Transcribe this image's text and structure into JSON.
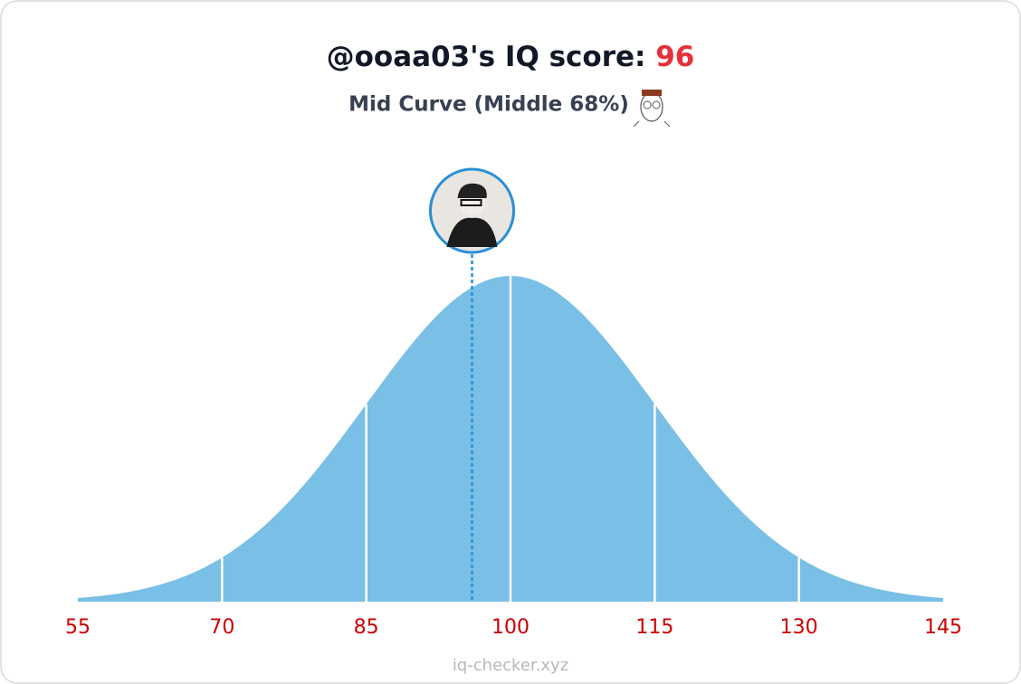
{
  "chart_data": {
    "type": "bell",
    "title": "@ooaa03's IQ score:",
    "score": 96,
    "subtitle": "Mid Curve (Middle 68%)",
    "xlim": [
      55,
      145
    ],
    "xticks": [
      55,
      70,
      85,
      100,
      115,
      130,
      145
    ],
    "color": "#79bfe6",
    "score_color": "#e8303a",
    "marker_color": "#2a8fd6",
    "tick_color": "#cc0000",
    "source": "iq-checker.xyz"
  }
}
